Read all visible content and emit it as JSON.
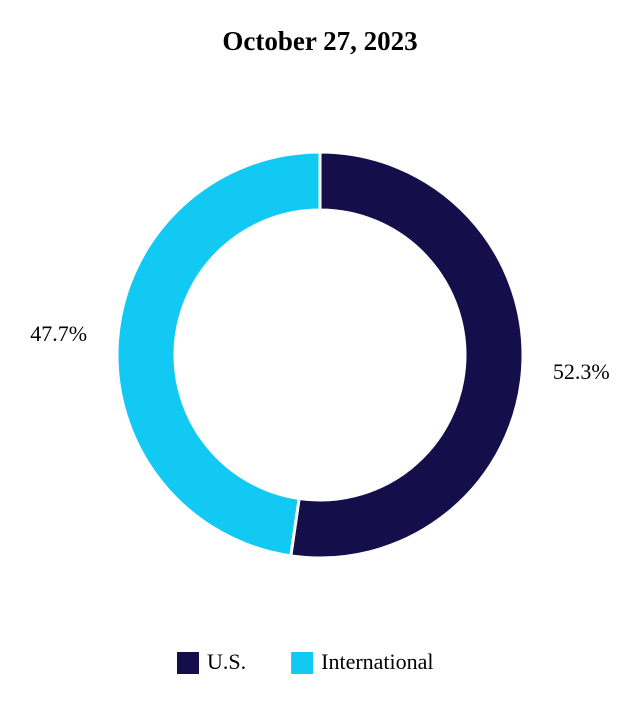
{
  "chart_data": {
    "type": "donut",
    "title": "October 27, 2023",
    "categories": [
      "U.S.",
      "International"
    ],
    "values": [
      52.3,
      47.7
    ],
    "value_labels": [
      "52.3%",
      "47.7%"
    ],
    "colors": [
      "#140f4b",
      "#12c9f3"
    ],
    "legend": "bottom"
  }
}
